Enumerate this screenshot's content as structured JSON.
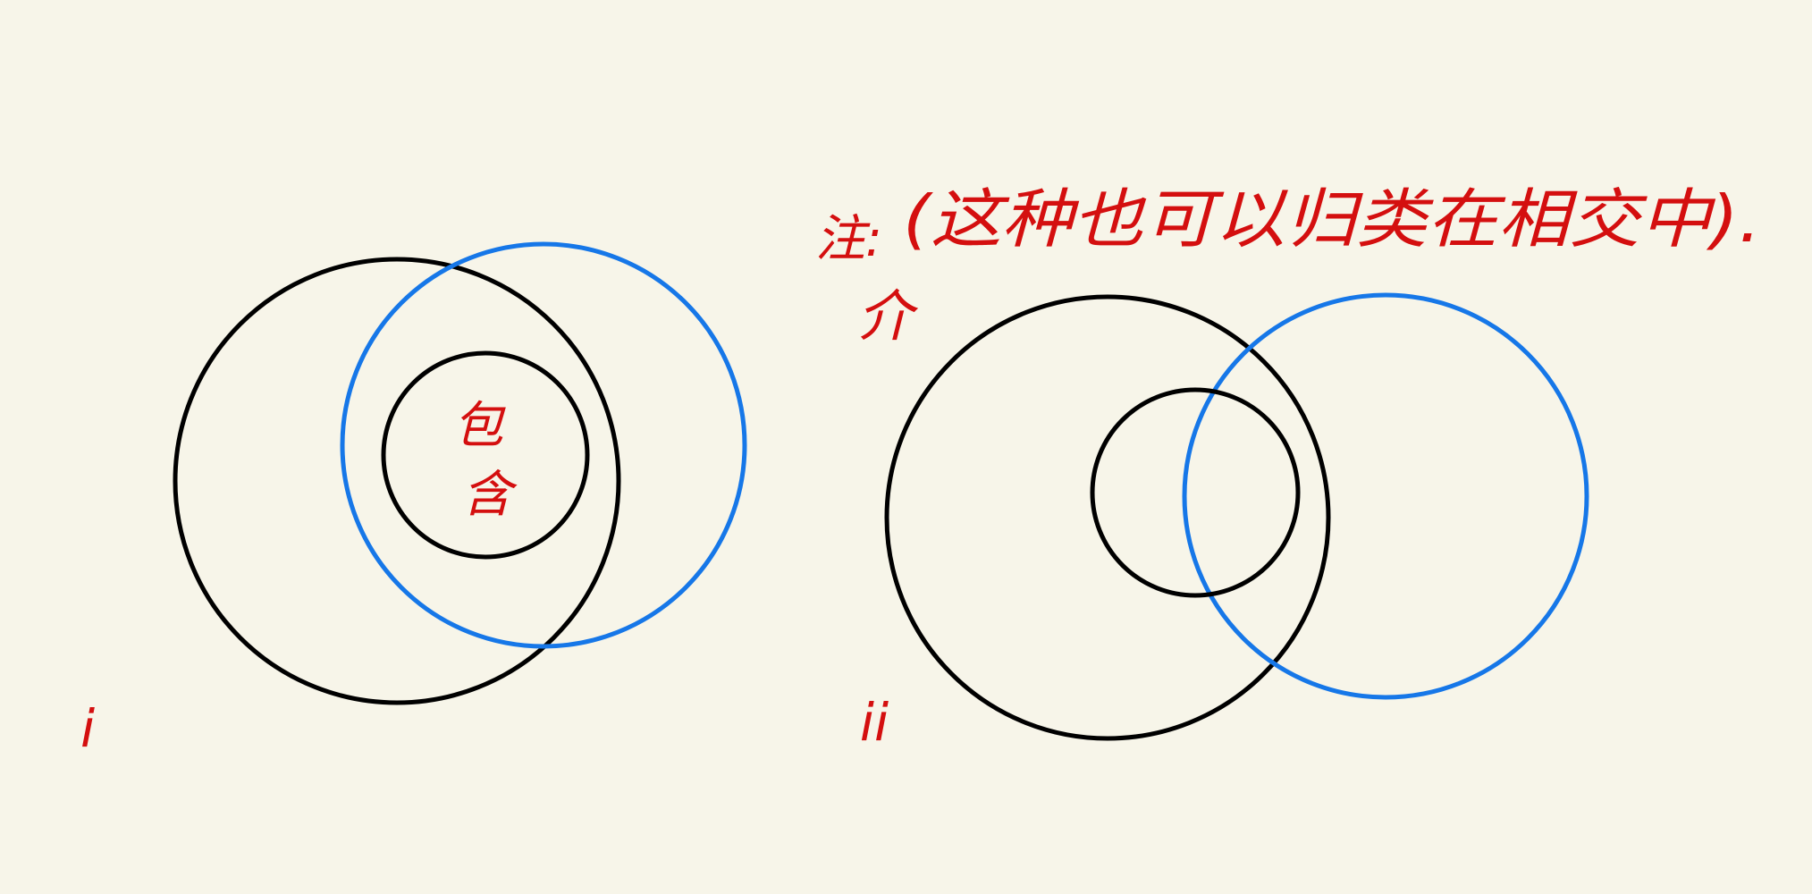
{
  "colors": {
    "background": "#f7f5e9",
    "outline": "#000000",
    "highlight": "#1677e8",
    "ink": "#d40f0f"
  },
  "left_figure": {
    "label": "i",
    "inner_label_top": "包",
    "inner_label_bottom": "含"
  },
  "right_figure": {
    "label": "ii",
    "note_prefix": "注:",
    "note": "(这种也可以归类在相交中).",
    "note_pointer": "介"
  }
}
